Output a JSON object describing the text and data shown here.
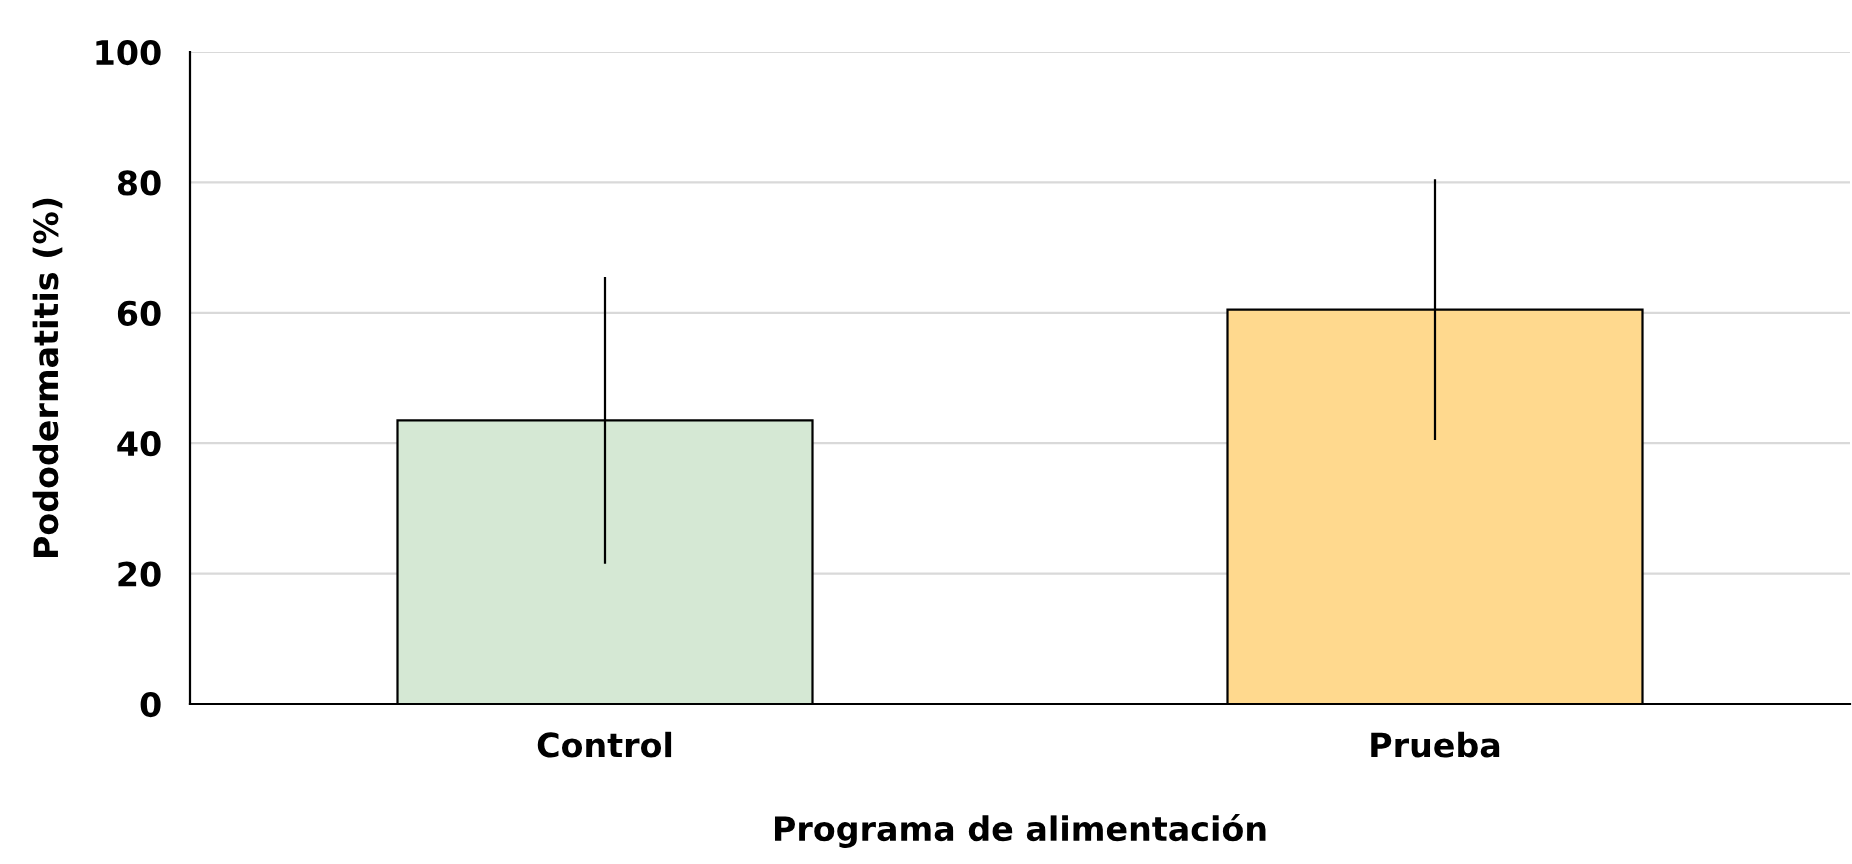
{
  "chart_data": {
    "type": "bar",
    "xlabel": "Programa de alimentación",
    "ylabel": "Pododermatitis (%)",
    "categories": [
      "Control",
      "Prueba"
    ],
    "values": [
      43.5,
      60.5
    ],
    "errors": [
      22,
      20
    ],
    "colors": [
      "#d5e8d4",
      "#ffd98e"
    ],
    "ylim": [
      0,
      100
    ],
    "yticks": [
      0,
      20,
      40,
      60,
      80,
      100
    ],
    "grid": "y"
  }
}
